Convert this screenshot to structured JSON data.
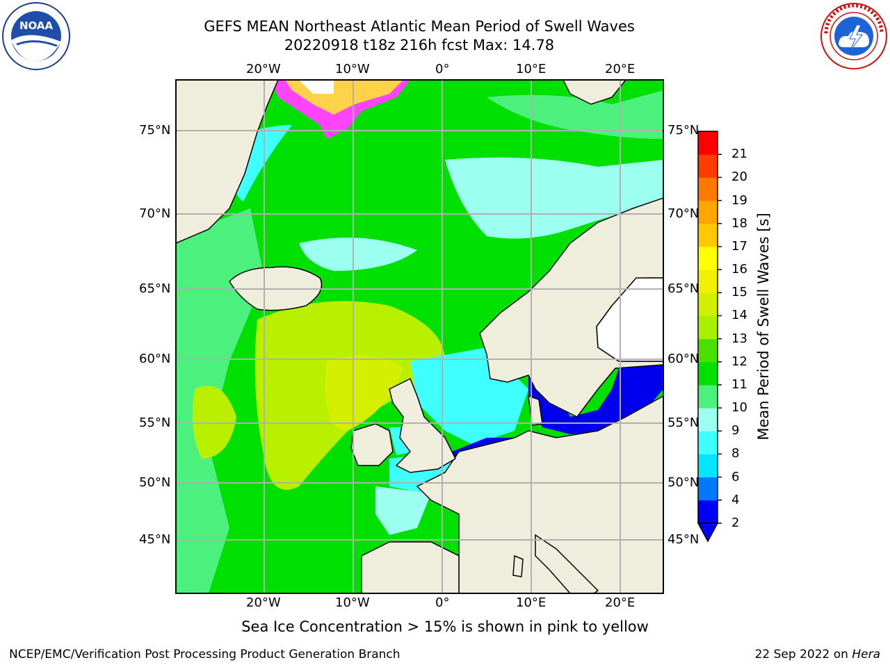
{
  "header": {
    "title_line1": "GEFS MEAN Northeast Atlantic Mean Period of Swell Waves",
    "title_line2": "20220918 t18z 216h fcst   Max: 14.78"
  },
  "logos": {
    "left": {
      "text": "NOAA",
      "ring_text": "NATIONAL OCEANIC AND ATMOSPHERIC ADMINISTRATION · U.S. DEPARTMENT OF COMMERCE"
    },
    "right": {
      "ring_text": "NATIONAL WEATHER SERVICE"
    }
  },
  "map": {
    "region": "Northeast Atlantic",
    "projection": "Mercator",
    "lon_range": [
      -30,
      25
    ],
    "lat_range": [
      41,
      78
    ],
    "lon_labels": [
      "20°W",
      "10°W",
      "0°",
      "10°E",
      "20°E"
    ],
    "lat_labels": [
      "75°N",
      "70°N",
      "65°N",
      "60°N",
      "55°N",
      "50°N",
      "45°N"
    ],
    "grid": true,
    "land_color": "#efeddc",
    "colors": {
      "ocean_green": "#00e000",
      "light_green": "#4cf07c",
      "yellow_green": "#b8f000",
      "cyan": "#40ffff",
      "pale_cyan": "#9dfff0",
      "blue": "#0000ee",
      "ice_pink": "#ff44ff",
      "ice_yellow": "#ffd24a"
    }
  },
  "colorbar": {
    "title": "Mean Period of Swell Waves [s]",
    "tick_labels": [
      "2",
      "4",
      "6",
      "8",
      "9",
      "10",
      "11",
      "12",
      "13",
      "14",
      "15",
      "16",
      "17",
      "18",
      "19",
      "20",
      "21"
    ],
    "bins": [
      {
        "color": "#0000ff"
      },
      {
        "color": "#0078ff"
      },
      {
        "color": "#00e6ff"
      },
      {
        "color": "#40ffff"
      },
      {
        "color": "#9dfff0"
      },
      {
        "color": "#4cf07c"
      },
      {
        "color": "#00e000"
      },
      {
        "color": "#4ae000"
      },
      {
        "color": "#a8f000"
      },
      {
        "color": "#d0f000"
      },
      {
        "color": "#f0f000"
      },
      {
        "color": "#ffff00"
      },
      {
        "color": "#ffc800"
      },
      {
        "color": "#ffa500"
      },
      {
        "color": "#ff7800"
      },
      {
        "color": "#ff3c00"
      },
      {
        "color": "#ff0000"
      }
    ],
    "extend_min_color": "#0000ff"
  },
  "note": "Sea Ice Concentration > 15% is shown in pink to yellow",
  "footer": {
    "left": "NCEP/EMC/Verification Post Processing Product Generation Branch",
    "date": "22 Sep 2022 on ",
    "host": "Hera"
  }
}
